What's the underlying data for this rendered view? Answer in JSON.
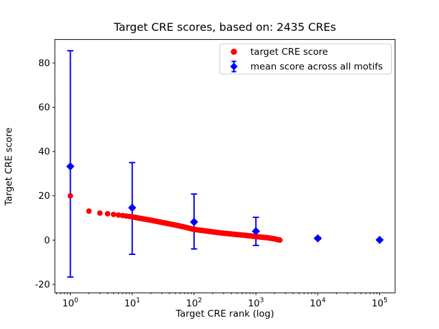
{
  "figure": {
    "title": "Target CRE scores, based on: 2435 CREs",
    "xlabel": "Target CRE rank (log)",
    "ylabel": "Target CRE score",
    "background_color": "#ffffff",
    "axes_color": "#000000"
  },
  "chart_data": {
    "type": "scatter",
    "title": "Target CRE scores, based on: 2435 CREs",
    "xlabel": "Target CRE rank (log)",
    "ylabel": "Target CRE score",
    "x_scale": "log10",
    "xlim_log10": [
      -0.25,
      5.25
    ],
    "ylim": [
      -23.8,
      90.6
    ],
    "yticks": [
      -20,
      0,
      20,
      40,
      60,
      80
    ],
    "xtick_decades": [
      0,
      1,
      2,
      3,
      4,
      5
    ],
    "grid": false,
    "legend_position": "upper right",
    "legend_border_color": "#cccccc",
    "series": [
      {
        "name": "target CRE score",
        "marker": "circle",
        "color": "#ff0000",
        "n_points": 2435,
        "rank_range": [
          1,
          2435
        ],
        "anchors": [
          [
            1,
            20.0
          ],
          [
            2,
            13.1
          ],
          [
            3,
            12.2
          ],
          [
            4,
            11.9
          ],
          [
            5,
            11.6
          ],
          [
            7,
            11.1
          ],
          [
            10,
            10.5
          ],
          [
            15,
            9.6
          ],
          [
            20,
            9.0
          ],
          [
            30,
            8.0
          ],
          [
            50,
            6.8
          ],
          [
            70,
            5.9
          ],
          [
            100,
            4.8
          ],
          [
            150,
            4.2
          ],
          [
            200,
            3.7
          ],
          [
            300,
            3.1
          ],
          [
            500,
            2.5
          ],
          [
            700,
            2.1
          ],
          [
            1000,
            1.6
          ],
          [
            1500,
            1.1
          ],
          [
            2000,
            0.6
          ],
          [
            2435,
            0.0
          ]
        ]
      },
      {
        "name": "mean score across all motifs",
        "marker": "diamond",
        "color": "#0000ff",
        "points": [
          {
            "x": 1,
            "mean": 33.3,
            "lo": -16.7,
            "hi": 85.5
          },
          {
            "x": 10,
            "mean": 14.6,
            "lo": -6.4,
            "hi": 35.0
          },
          {
            "x": 100,
            "mean": 8.2,
            "lo": -4.0,
            "hi": 20.8
          },
          {
            "x": 1000,
            "mean": 4.0,
            "lo": -2.4,
            "hi": 10.3
          },
          {
            "x": 10000,
            "mean": 0.8,
            "lo": 0.4,
            "hi": 1.2
          },
          {
            "x": 100000,
            "mean": 0.1,
            "lo": -0.1,
            "hi": 0.3
          }
        ]
      }
    ]
  }
}
